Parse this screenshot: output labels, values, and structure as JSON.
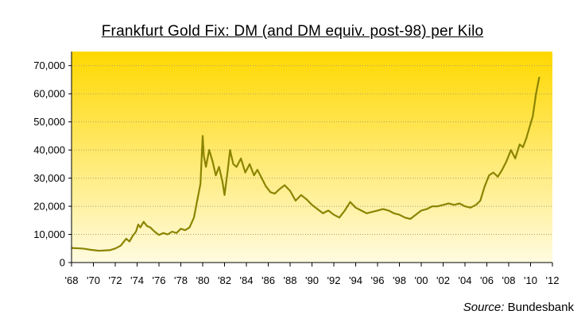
{
  "chart_data": {
    "type": "line",
    "title": "Frankfurt Gold Fix: DM (and DM equiv. post-98) per Kilo",
    "source_label": "Source:",
    "source_value": "Bundesbank",
    "xlabel": "",
    "ylabel": "",
    "ylim": [
      0,
      75000
    ],
    "xlim": [
      1968,
      2012
    ],
    "y_ticks": [
      "0",
      "10,000",
      "20,000",
      "30,000",
      "40,000",
      "50,000",
      "60,000",
      "70,000"
    ],
    "y_tick_values": [
      0,
      10000,
      20000,
      30000,
      40000,
      50000,
      60000,
      70000
    ],
    "x_ticks": [
      "'68",
      "'70",
      "'72",
      "'74",
      "'76",
      "'78",
      "'80",
      "'82",
      "'84",
      "'86",
      "'88",
      "'90",
      "'92",
      "'94",
      "'96",
      "'98",
      "'00",
      "'02",
      "'04",
      "'06",
      "'08",
      "'10",
      "'12"
    ],
    "x_tick_values": [
      1968,
      1970,
      1972,
      1974,
      1976,
      1978,
      1980,
      1982,
      1984,
      1986,
      1988,
      1990,
      1992,
      1994,
      1996,
      1998,
      2000,
      2002,
      2004,
      2006,
      2008,
      2010,
      2012
    ],
    "grid": true,
    "colors": {
      "line": "#8b8400",
      "bg_top": "#ffd800",
      "bg_bottom": "#fffbe0",
      "grid": "#b0a070"
    },
    "series": [
      {
        "x": [
          1968.0,
          1969.0,
          1969.8,
          1970.5,
          1971.5,
          1972.0,
          1972.5,
          1973.0,
          1973.3,
          1973.6,
          1973.9,
          1974.1,
          1974.3,
          1974.6,
          1974.9,
          1975.2,
          1975.6,
          1976.0,
          1976.4,
          1976.8,
          1977.2,
          1977.6,
          1978.0,
          1978.4,
          1978.8,
          1979.2,
          1979.5,
          1979.8,
          1980.0,
          1980.1,
          1980.3,
          1980.6,
          1980.9,
          1981.2,
          1981.5,
          1981.8,
          1982.0,
          1982.3,
          1982.5,
          1982.8,
          1983.1,
          1983.5,
          1983.9,
          1984.3,
          1984.7,
          1985.0,
          1985.4,
          1985.8,
          1986.2,
          1986.6,
          1987.0,
          1987.5,
          1988.0,
          1988.5,
          1989.0,
          1989.5,
          1990.0,
          1990.5,
          1991.0,
          1991.5,
          1992.0,
          1992.5,
          1993.0,
          1993.5,
          1994.0,
          1994.5,
          1995.0,
          1995.5,
          1996.0,
          1996.5,
          1997.0,
          1997.5,
          1998.0,
          1998.5,
          1999.0,
          1999.5,
          2000.0,
          2000.5,
          2001.0,
          2001.5,
          2002.0,
          2002.5,
          2003.0,
          2003.5,
          2004.0,
          2004.5,
          2005.0,
          2005.4,
          2005.8,
          2006.2,
          2006.6,
          2007.0,
          2007.4,
          2007.8,
          2008.2,
          2008.6,
          2009.0,
          2009.3,
          2009.6,
          2009.9,
          2010.2,
          2010.5,
          2010.8
        ],
        "y": [
          5200,
          5000,
          4500,
          4200,
          4400,
          5000,
          6000,
          8500,
          7500,
          9500,
          11000,
          13500,
          12500,
          14500,
          13000,
          12500,
          11000,
          9800,
          10500,
          10000,
          11000,
          10500,
          12000,
          11500,
          12500,
          16000,
          22000,
          28000,
          45000,
          38000,
          34000,
          40000,
          36000,
          31000,
          34000,
          29000,
          24000,
          33000,
          40000,
          35000,
          34000,
          37000,
          32000,
          35000,
          31000,
          33000,
          30000,
          27000,
          25000,
          24500,
          26000,
          27500,
          25500,
          22000,
          24000,
          22500,
          20500,
          19000,
          17500,
          18500,
          17000,
          16000,
          18500,
          21500,
          19500,
          18500,
          17500,
          18000,
          18500,
          19000,
          18500,
          17500,
          17000,
          16000,
          15500,
          17000,
          18500,
          19000,
          20000,
          20000,
          20500,
          21000,
          20500,
          21000,
          20000,
          19500,
          20500,
          22000,
          27000,
          31000,
          32000,
          30500,
          33000,
          36000,
          40000,
          37000,
          42000,
          41000,
          44000,
          48000,
          52000,
          60000,
          66000
        ]
      }
    ]
  }
}
